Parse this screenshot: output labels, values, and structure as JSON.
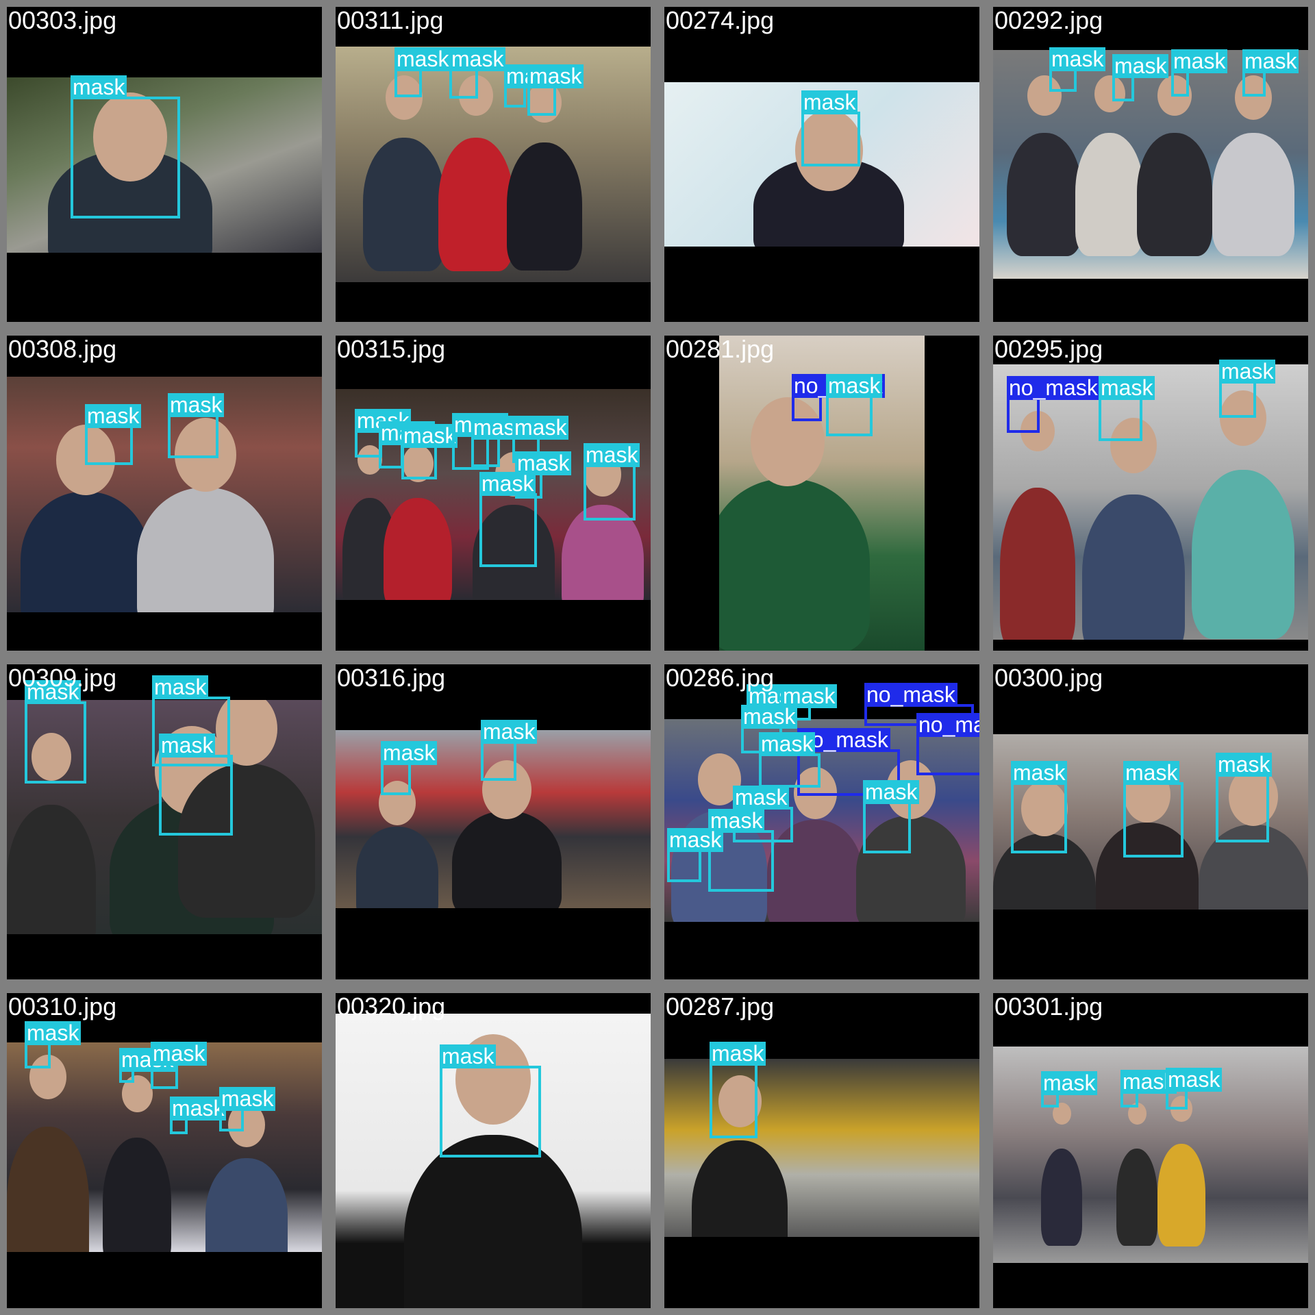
{
  "colors": {
    "mask": "#24c8dc",
    "no_mask": "#1f2bea",
    "frame": "#808080"
  },
  "tiles": [
    {
      "file": "00303.jpg",
      "boxes": [
        {
          "label": "mask"
        }
      ]
    },
    {
      "file": "00311.jpg",
      "boxes": [
        {
          "label": "mask"
        },
        {
          "label": "mask"
        },
        {
          "label": "mask"
        },
        {
          "label": "mask"
        }
      ]
    },
    {
      "file": "00274.jpg",
      "boxes": [
        {
          "label": "mask"
        }
      ]
    },
    {
      "file": "00292.jpg",
      "boxes": [
        {
          "label": "mask"
        },
        {
          "label": "mask"
        },
        {
          "label": "mask"
        },
        {
          "label": "mask"
        }
      ]
    },
    {
      "file": "00308.jpg",
      "boxes": [
        {
          "label": "mask"
        },
        {
          "label": "mask"
        }
      ]
    },
    {
      "file": "00315.jpg",
      "boxes": [
        {
          "label": "mask"
        },
        {
          "label": "mask"
        },
        {
          "label": "mask"
        },
        {
          "label": "mask"
        },
        {
          "label": "mask"
        },
        {
          "label": "mask"
        },
        {
          "label": "mask"
        },
        {
          "label": "mask"
        },
        {
          "label": "mask"
        }
      ]
    },
    {
      "file": "00281.jpg",
      "boxes": [
        {
          "label": "no_mask"
        },
        {
          "label": "mask"
        }
      ]
    },
    {
      "file": "00295.jpg",
      "boxes": [
        {
          "label": "no_mask"
        },
        {
          "label": "mask"
        },
        {
          "label": "mask"
        }
      ]
    },
    {
      "file": "00309.jpg",
      "boxes": [
        {
          "label": "mask"
        },
        {
          "label": "mask"
        },
        {
          "label": "mask"
        }
      ]
    },
    {
      "file": "00316.jpg",
      "boxes": [
        {
          "label": "mask"
        },
        {
          "label": "mask"
        }
      ]
    },
    {
      "file": "00286.jpg",
      "boxes": [
        {
          "label": "mask"
        },
        {
          "label": "mask"
        },
        {
          "label": "mask"
        },
        {
          "label": "no_mask"
        },
        {
          "label": "no_mask"
        },
        {
          "label": "no_mask"
        },
        {
          "label": "mask"
        },
        {
          "label": "mask"
        },
        {
          "label": "mask"
        },
        {
          "label": "mask"
        },
        {
          "label": "mask"
        }
      ]
    },
    {
      "file": "00300.jpg",
      "boxes": [
        {
          "label": "mask"
        },
        {
          "label": "mask"
        },
        {
          "label": "mask"
        }
      ]
    },
    {
      "file": "00310.jpg",
      "boxes": [
        {
          "label": "mask"
        },
        {
          "label": "mask"
        },
        {
          "label": "mask"
        },
        {
          "label": "mask"
        },
        {
          "label": "mask"
        }
      ]
    },
    {
      "file": "00320.jpg",
      "boxes": [
        {
          "label": "mask"
        }
      ]
    },
    {
      "file": "00287.jpg",
      "boxes": [
        {
          "label": "mask"
        }
      ]
    },
    {
      "file": "00301.jpg",
      "boxes": [
        {
          "label": "mask"
        },
        {
          "label": "mask"
        },
        {
          "label": "mask"
        }
      ]
    }
  ]
}
